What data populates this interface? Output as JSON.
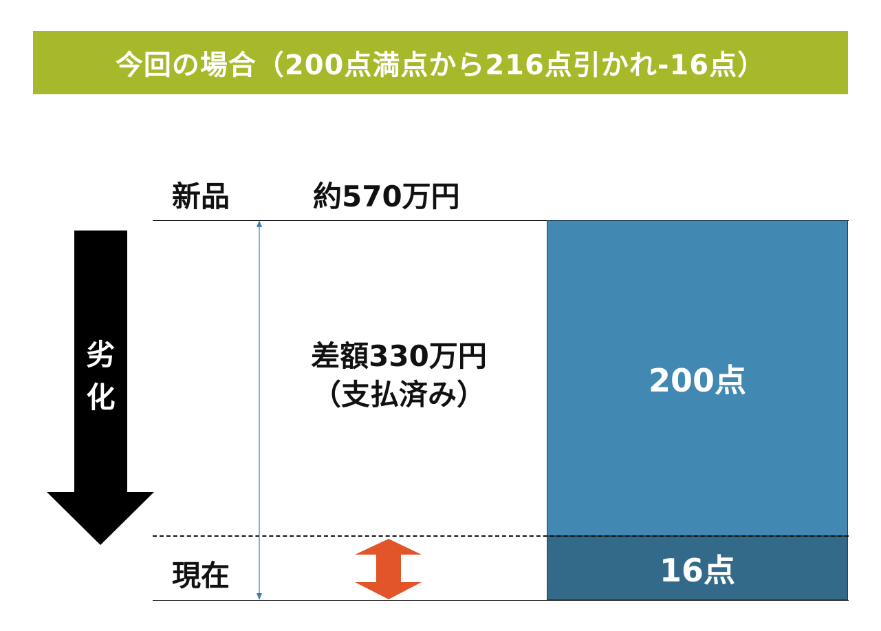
{
  "header": {
    "title": "今回の場合（200点満点から216点引かれ-16点）",
    "color": "#a7b82a"
  },
  "rows": {
    "new_label": "新品",
    "new_price": "約570万円",
    "current_label": "現在"
  },
  "difference": {
    "line1": "差額330万円",
    "line2": "（支払済み）"
  },
  "blocks": {
    "upper_label": "200点",
    "upper_color": "#4188b2",
    "lower_label": "16点",
    "lower_color": "#336a8a"
  },
  "deterioration_arrow": {
    "text_line1": "劣",
    "text_line2": "化"
  },
  "icons": {
    "big_arrow": "down-arrow-icon",
    "measure_arrow": "double-headed-vertical-arrow-icon",
    "orange_arrow": "double-headed-vertical-arrow-icon",
    "orange_color": "#e2542a"
  }
}
